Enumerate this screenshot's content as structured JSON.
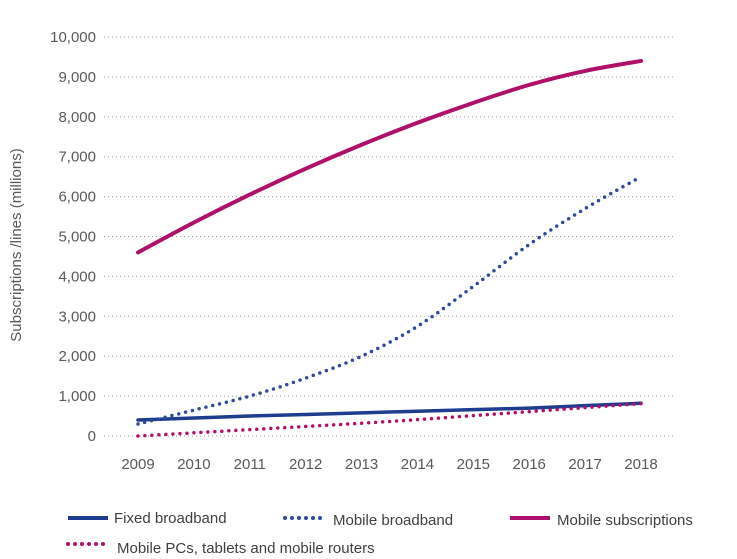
{
  "chart_data": {
    "type": "line",
    "title": "",
    "xlabel": "",
    "ylabel": "Subscriptions /lines (millions)",
    "x": [
      2009,
      2010,
      2011,
      2012,
      2013,
      2014,
      2015,
      2016,
      2017,
      2018
    ],
    "ylim": [
      0,
      10000
    ],
    "yticks": [
      0,
      1000,
      2000,
      3000,
      4000,
      5000,
      6000,
      7000,
      8000,
      9000,
      10000
    ],
    "ytick_labels": [
      "0",
      "1,000",
      "2,000",
      "3,000",
      "4,000",
      "5,000",
      "6,000",
      "7,000",
      "8,000",
      "9,000",
      "10,000"
    ],
    "grid": "horizontal-dotted",
    "legend_position": "bottom",
    "series": [
      {
        "name": "Fixed broadband",
        "style": "solid",
        "color": "#1f3d8f",
        "values": [
          400,
          450,
          500,
          540,
          580,
          620,
          660,
          700,
          760,
          820
        ]
      },
      {
        "name": "Mobile broadband",
        "style": "dotted",
        "color": "#2e4a9e",
        "values": [
          300,
          650,
          1000,
          1450,
          2000,
          2750,
          3750,
          4800,
          5700,
          6500
        ]
      },
      {
        "name": "Mobile subscriptions",
        "style": "solid",
        "color": "#b0106a",
        "values": [
          4600,
          5350,
          6050,
          6700,
          7300,
          7850,
          8350,
          8800,
          9150,
          9400
        ]
      },
      {
        "name": "Mobile PCs, tablets and mobile routers",
        "style": "dotted",
        "color": "#b0106a",
        "values": [
          0,
          80,
          160,
          240,
          320,
          410,
          510,
          610,
          710,
          810
        ]
      }
    ]
  }
}
